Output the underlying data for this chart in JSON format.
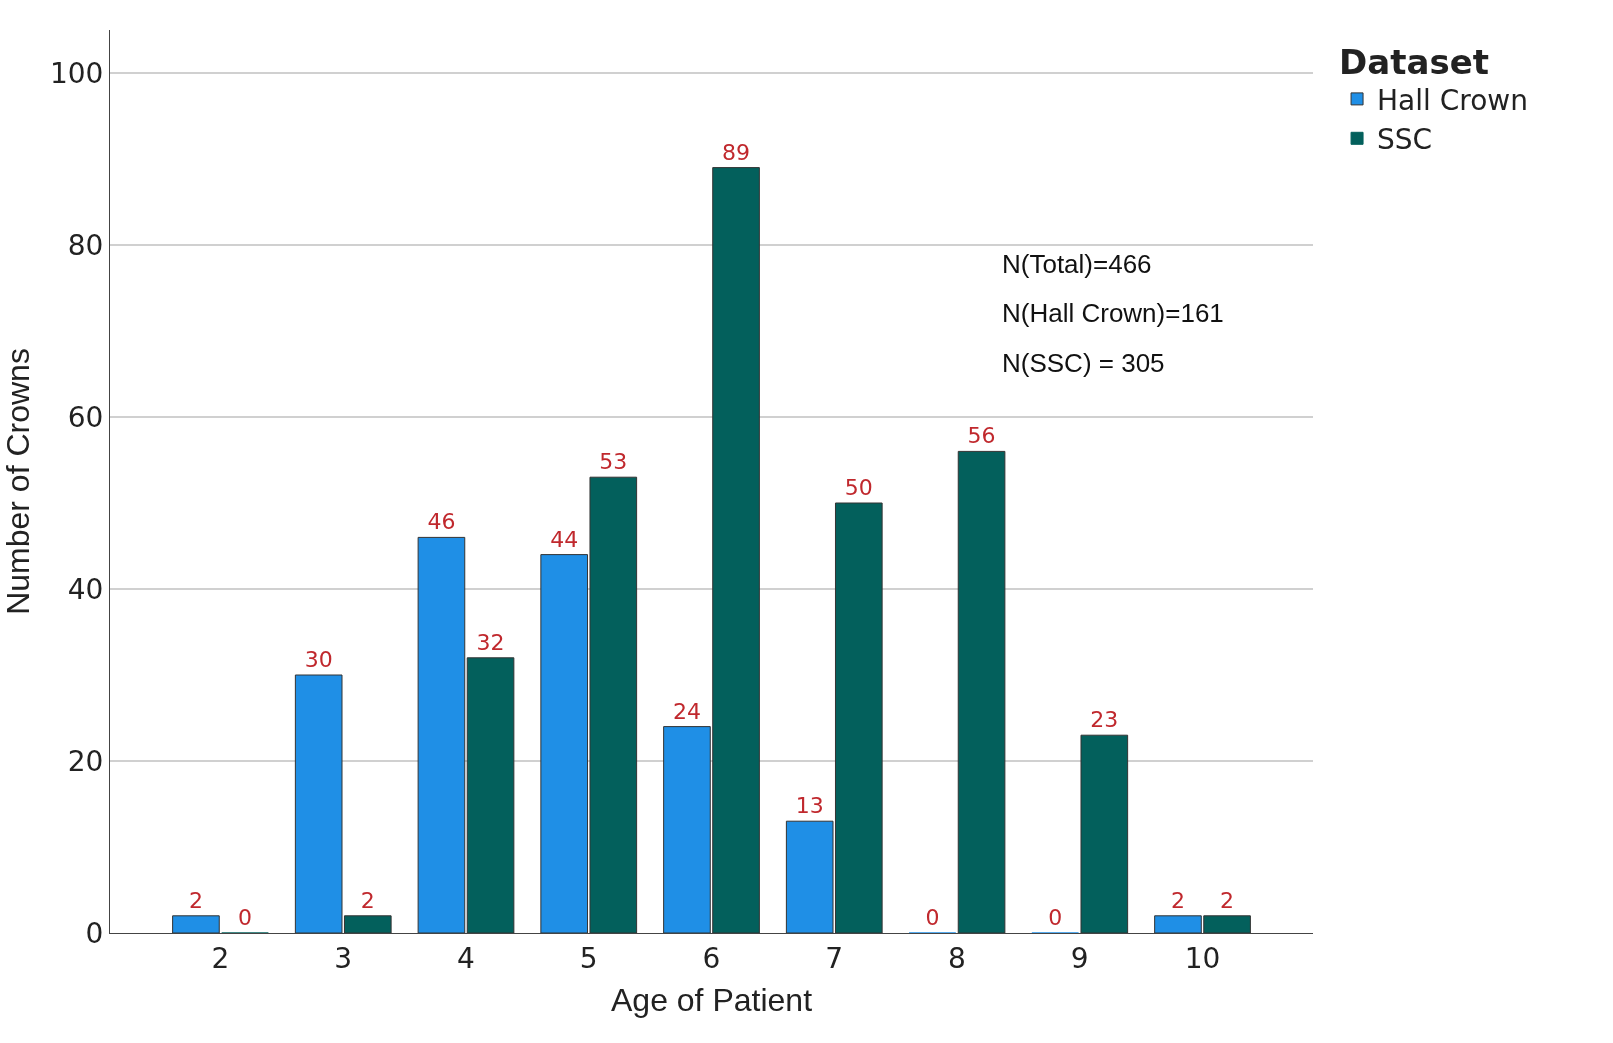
{
  "chart_data": {
    "type": "bar",
    "xlabel": "Age of Patient",
    "ylabel": "Number of Crowns",
    "legend_title": "Dataset",
    "categories": [
      "2",
      "3",
      "4",
      "5",
      "6",
      "7",
      "8",
      "9",
      "10"
    ],
    "series": [
      {
        "name": "Hall Crown",
        "color": "#1f8fe6",
        "values": [
          2,
          30,
          46,
          44,
          24,
          13,
          0,
          0,
          2
        ]
      },
      {
        "name": "SSC",
        "color": "#03605c",
        "values": [
          0,
          2,
          32,
          53,
          89,
          50,
          56,
          23,
          2
        ]
      }
    ],
    "ylim": [
      0,
      105
    ],
    "yticks": [
      0,
      20,
      40,
      60,
      80,
      100
    ],
    "grid": "y",
    "legend": "top right",
    "data_labels": true,
    "annotations": [
      "N(Total)=466",
      "N(Hall Crown)=161",
      "N(SSC) = 305"
    ]
  }
}
